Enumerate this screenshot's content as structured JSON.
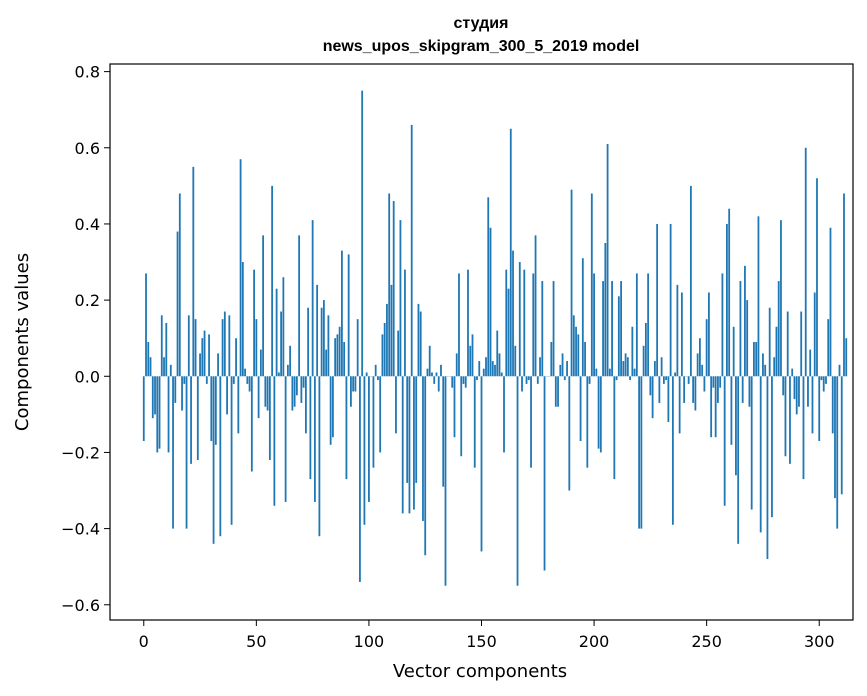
{
  "chart_data": {
    "type": "bar",
    "title_line1": "студия",
    "title_line2": "news_upos_skipgram_300_5_2019 model",
    "xlabel": "Vector components",
    "ylabel": "Components values",
    "xlim": [
      -15,
      315
    ],
    "ylim": [
      -0.64,
      0.82
    ],
    "xticks": [
      0,
      50,
      100,
      150,
      200,
      250,
      300
    ],
    "xtick_labels": [
      "0",
      "50",
      "100",
      "150",
      "200",
      "250",
      "300"
    ],
    "yticks": [
      -0.6,
      -0.4,
      -0.2,
      0.0,
      0.2,
      0.4,
      0.6,
      0.8
    ],
    "ytick_labels": [
      "−0.6",
      "−0.4",
      "−0.2",
      "0.0",
      "0.2",
      "0.4",
      "0.6",
      "0.8"
    ],
    "bar_color": "#1f77b4",
    "values": [
      -0.17,
      0.27,
      0.09,
      0.05,
      -0.11,
      -0.1,
      -0.2,
      -0.19,
      0.16,
      0.05,
      0.14,
      -0.2,
      0.03,
      -0.4,
      -0.07,
      0.38,
      0.48,
      -0.09,
      -0.02,
      -0.4,
      0.16,
      -0.23,
      0.55,
      0.15,
      -0.22,
      0.06,
      0.1,
      0.12,
      -0.02,
      0.11,
      -0.17,
      -0.44,
      -0.18,
      0.06,
      -0.42,
      0.15,
      0.17,
      -0.1,
      0.16,
      -0.39,
      -0.02,
      0.1,
      -0.15,
      0.57,
      0.3,
      0.02,
      -0.02,
      -0.04,
      -0.25,
      0.28,
      0.15,
      -0.11,
      0.07,
      0.37,
      -0.08,
      -0.09,
      -0.22,
      0.5,
      -0.34,
      0.23,
      0.01,
      0.17,
      0.26,
      -0.33,
      0.03,
      0.08,
      -0.09,
      -0.08,
      -0.05,
      0.37,
      -0.07,
      -0.03,
      -0.15,
      0.18,
      -0.27,
      0.41,
      -0.33,
      0.24,
      -0.42,
      0.18,
      0.2,
      0.07,
      0.16,
      -0.18,
      -0.16,
      0.1,
      0.11,
      0.13,
      0.33,
      0.09,
      -0.27,
      0.32,
      -0.08,
      -0.04,
      -0.04,
      0.15,
      -0.54,
      0.75,
      -0.39,
      0.01,
      -0.33,
      0.0,
      -0.24,
      0.03,
      -0.01,
      -0.2,
      0.11,
      0.14,
      0.19,
      0.48,
      0.24,
      0.46,
      -0.15,
      0.12,
      0.41,
      -0.36,
      0.28,
      -0.28,
      -0.36,
      0.66,
      -0.35,
      -0.28,
      0.19,
      0.17,
      -0.38,
      -0.47,
      0.02,
      0.08,
      0.01,
      -0.02,
      0.01,
      -0.04,
      0.03,
      -0.29,
      -0.55,
      0.0,
      0.0,
      -0.03,
      -0.16,
      0.06,
      0.27,
      -0.21,
      -0.02,
      -0.03,
      0.28,
      0.08,
      0.11,
      -0.24,
      -0.01,
      0.04,
      -0.46,
      0.02,
      0.05,
      0.47,
      0.39,
      0.04,
      0.03,
      0.12,
      0.06,
      0.01,
      -0.2,
      0.28,
      0.23,
      0.65,
      0.33,
      0.08,
      -0.55,
      0.3,
      -0.04,
      0.28,
      -0.02,
      -0.01,
      -0.24,
      0.27,
      0.37,
      -0.02,
      0.05,
      0.25,
      -0.51,
      0.0,
      0.0,
      0.09,
      0.25,
      -0.08,
      -0.08,
      0.03,
      0.06,
      -0.01,
      0.04,
      -0.3,
      0.49,
      0.16,
      0.13,
      0.11,
      -0.17,
      0.31,
      0.09,
      -0.24,
      -0.02,
      0.48,
      0.27,
      0.02,
      -0.19,
      -0.2,
      0.25,
      0.35,
      0.61,
      0.02,
      0.25,
      -0.27,
      -0.01,
      0.21,
      0.25,
      0.04,
      0.06,
      0.05,
      -0.01,
      0.13,
      0.02,
      0.27,
      -0.4,
      -0.4,
      0.08,
      0.14,
      0.27,
      -0.05,
      -0.11,
      0.04,
      0.4,
      -0.07,
      0.05,
      -0.02,
      -0.01,
      -0.12,
      0.4,
      -0.39,
      0.01,
      0.24,
      -0.15,
      0.22,
      -0.07,
      0.0,
      -0.02,
      0.5,
      -0.07,
      -0.09,
      0.06,
      0.1,
      0.03,
      -0.04,
      0.15,
      0.22,
      -0.16,
      -0.03,
      -0.16,
      -0.07,
      -0.03,
      0.27,
      -0.34,
      0.4,
      0.44,
      -0.18,
      0.13,
      -0.26,
      -0.44,
      0.25,
      -0.07,
      0.29,
      0.2,
      -0.08,
      -0.35,
      0.09,
      0.09,
      0.42,
      -0.41,
      0.06,
      0.03,
      -0.48,
      0.18,
      -0.37,
      0.05,
      0.13,
      0.25,
      0.41,
      -0.05,
      -0.21,
      0.17,
      -0.23,
      0.02,
      -0.06,
      -0.1,
      -0.08,
      0.17,
      -0.27,
      0.6,
      -0.08,
      0.07,
      -0.15,
      0.22,
      0.52,
      -0.17,
      -0.01,
      -0.04,
      -0.02,
      0.15,
      0.39,
      -0.15,
      -0.32,
      -0.4,
      0.03,
      -0.31,
      0.48,
      0.1
    ]
  }
}
